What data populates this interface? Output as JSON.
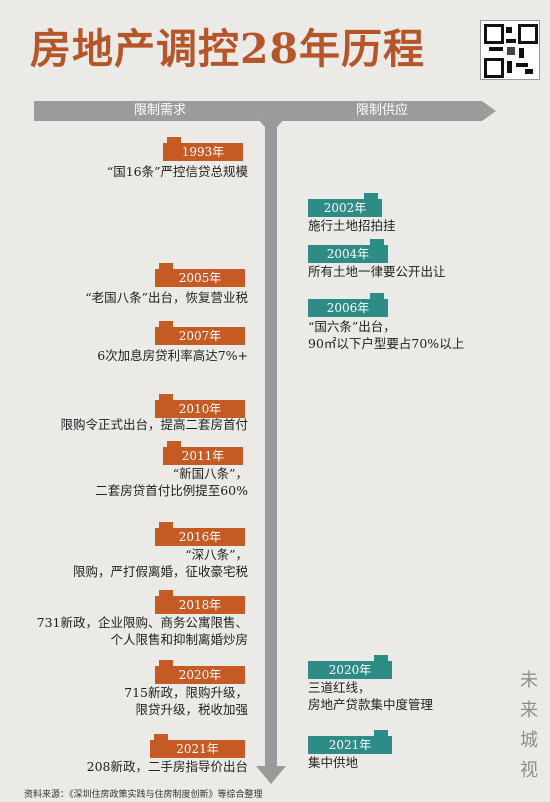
{
  "title": "房地产调控28年历程",
  "header": {
    "left_label": "限制需求",
    "right_label": "限制供应"
  },
  "left_events": [
    {
      "year": "1993年",
      "lines": [
        "“国16条”严控信贷总规模"
      ]
    },
    {
      "year": "2005年",
      "lines": [
        "“老国八条”出台，恢复营业税"
      ]
    },
    {
      "year": "2007年",
      "lines": [
        "6次加息房贷利率高达7%+"
      ]
    },
    {
      "year": "2010年",
      "lines": [
        "限购令正式出台，提高二套房首付"
      ]
    },
    {
      "year": "2011年",
      "lines": [
        "“新国八条”，",
        "二套房贷首付比例提至60%"
      ]
    },
    {
      "year": "2016年",
      "lines": [
        "“深八条”，",
        "限购，严打假离婚，征收豪宅税"
      ]
    },
    {
      "year": "2018年",
      "lines": [
        "731新政，企业限购、商务公寓限售、",
        "个人限售和抑制离婚炒房"
      ]
    },
    {
      "year": "2020年",
      "lines": [
        "715新政，限购升级，",
        "限贷升级，税收加强"
      ]
    },
    {
      "year": "2021年",
      "lines": [
        "208新政，二手房指导价出台"
      ]
    }
  ],
  "right_events": [
    {
      "year": "2002年",
      "lines": [
        "施行土地招拍挂"
      ]
    },
    {
      "year": "2004年",
      "lines": [
        "所有土地一律要公开出让"
      ]
    },
    {
      "year": "2006年",
      "lines": [
        "“国六条”出台，",
        "90㎡以下户型要占70%以上"
      ]
    },
    {
      "year": "2020年",
      "lines": [
        "三道红线，",
        "房地产贷款集中度管理"
      ]
    },
    {
      "year": "2021年",
      "lines": [
        "集中供地"
      ]
    }
  ],
  "footer": "资料来源：《深圳住房政策实践与住房制度创新》等综合整理",
  "brand": [
    "未",
    "来",
    "城",
    "视"
  ],
  "colors": {
    "title": "#b5562a",
    "demand_tag": "#c55a25",
    "supply_tag": "#2e8c86",
    "spine": "#9a9a9a"
  }
}
